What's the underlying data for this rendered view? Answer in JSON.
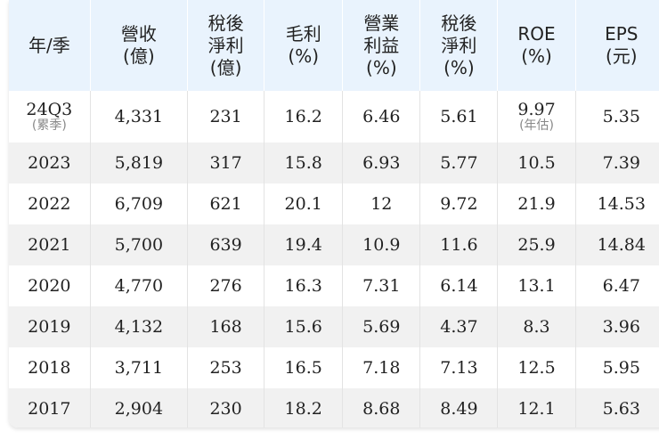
{
  "table": {
    "header": [
      "年/季",
      "營收\n(億)",
      "稅後\n淨利\n(億)",
      "毛利\n(%)",
      "營業\n利益\n(%)",
      "稅後\n淨利\n(%)",
      "ROE\n(%)",
      "EPS\n(元)"
    ],
    "rows": [
      [
        {
          "text": "24Q3",
          "note": "(累季)"
        },
        "4,331",
        "231",
        "16.2",
        "6.46",
        "5.61",
        {
          "text": "9.97",
          "note": "(年估)"
        },
        "5.35"
      ],
      [
        "2023",
        "5,819",
        "317",
        "15.8",
        "6.93",
        "5.77",
        "10.5",
        "7.39"
      ],
      [
        "2022",
        "6,709",
        "621",
        "20.1",
        "12",
        "9.72",
        "21.9",
        "14.53"
      ],
      [
        "2021",
        "5,700",
        "639",
        "19.4",
        "10.9",
        "11.6",
        "25.9",
        "14.84"
      ],
      [
        "2020",
        "4,770",
        "276",
        "16.3",
        "7.31",
        "6.14",
        "13.1",
        "6.47"
      ],
      [
        "2019",
        "4,132",
        "168",
        "15.6",
        "5.69",
        "4.37",
        "8.3",
        "3.96"
      ],
      [
        "2018",
        "3,711",
        "253",
        "16.5",
        "7.18",
        "7.13",
        "12.5",
        "5.95"
      ],
      [
        "2017",
        "2,904",
        "230",
        "18.2",
        "8.68",
        "8.49",
        "12.1",
        "5.63"
      ]
    ]
  }
}
